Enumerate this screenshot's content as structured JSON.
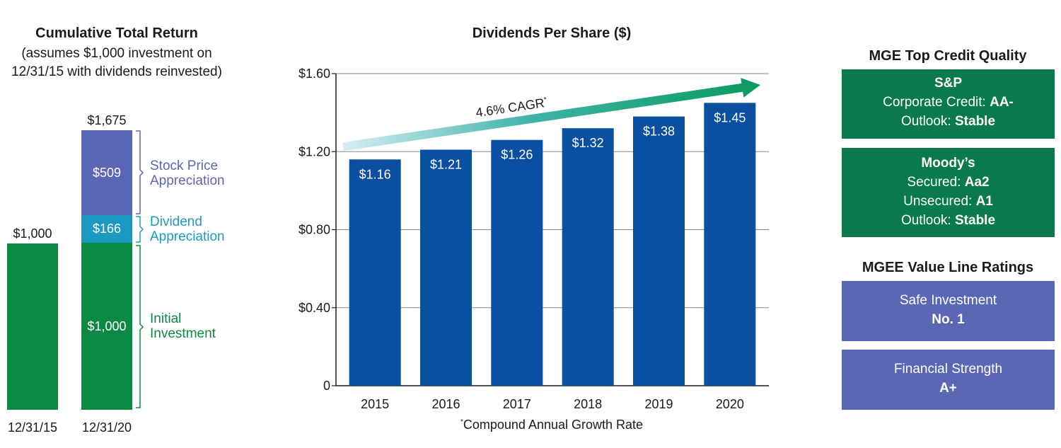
{
  "cumulative": {
    "title": "Cumulative Total Return",
    "subtitle_line1": "(assumes $1,000 investment on",
    "subtitle_line2": "12/31/15 with dividends reinvested)",
    "bar1": {
      "top_label": "$1,000",
      "x_label": "12/31/15",
      "value": 1000
    },
    "bar2": {
      "top_label": "$1,675",
      "x_label": "12/31/20",
      "total": 1675,
      "segments": [
        {
          "name": "Initial Investment",
          "value": 1000,
          "label": "$1,000",
          "color": "#0a8a42"
        },
        {
          "name": "Dividend Appreciation",
          "value": 166,
          "label": "$166",
          "color": "#1a9ac0"
        },
        {
          "name": "Stock Price Appreciation",
          "value": 509,
          "label": "$509",
          "color": "#5a67b4"
        }
      ]
    },
    "legend": {
      "stock_line1": "Stock Price",
      "stock_line2": "Appreciation",
      "dividend_line1": "Dividend",
      "dividend_line2": "Appreciation",
      "initial_line1": "Initial",
      "initial_line2": "Investment"
    },
    "colors": {
      "initial": "#0a8a42",
      "dividend": "#1a9ac0",
      "stock": "#5a67b4"
    }
  },
  "chart_data": {
    "type": "bar",
    "title": "Dividends Per Share ($)",
    "categories": [
      "2015",
      "2016",
      "2017",
      "2018",
      "2019",
      "2020"
    ],
    "values": [
      1.16,
      1.21,
      1.26,
      1.32,
      1.38,
      1.45
    ],
    "value_labels": [
      "$1.16",
      "$1.21",
      "$1.26",
      "$1.32",
      "$1.38",
      "$1.45"
    ],
    "ylim": [
      0,
      1.6
    ],
    "yticks": [
      0,
      0.4,
      0.8,
      1.2,
      1.6
    ],
    "ytick_labels": [
      "0",
      "$0.40",
      "$0.80",
      "$1.20",
      "$1.60"
    ],
    "grid": true,
    "annotation": {
      "text": "4.6% CAGR",
      "marker": "*"
    },
    "footnote": {
      "marker": "*",
      "text": "Compound Annual Growth Rate"
    },
    "bar_color": "#0a4fa0"
  },
  "credit": {
    "title": "MGE Top Credit Quality",
    "sp": {
      "heading": "S&P",
      "line1_label": "Corporate Credit: ",
      "line1_value": "AA-",
      "line2_label": "Outlook: ",
      "line2_value": "Stable"
    },
    "moodys": {
      "heading": "Moody’s",
      "line1_label": "Secured: ",
      "line1_value": "Aa2",
      "line2_label": "Unsecured: ",
      "line2_value": "A1",
      "line3_label": "Outlook: ",
      "line3_value": "Stable"
    }
  },
  "value_line": {
    "title": "MGEE Value Line Ratings",
    "safe": {
      "label": "Safe Investment",
      "value": "No. 1"
    },
    "strength": {
      "label": "Financial Strength",
      "value": "A+"
    }
  }
}
